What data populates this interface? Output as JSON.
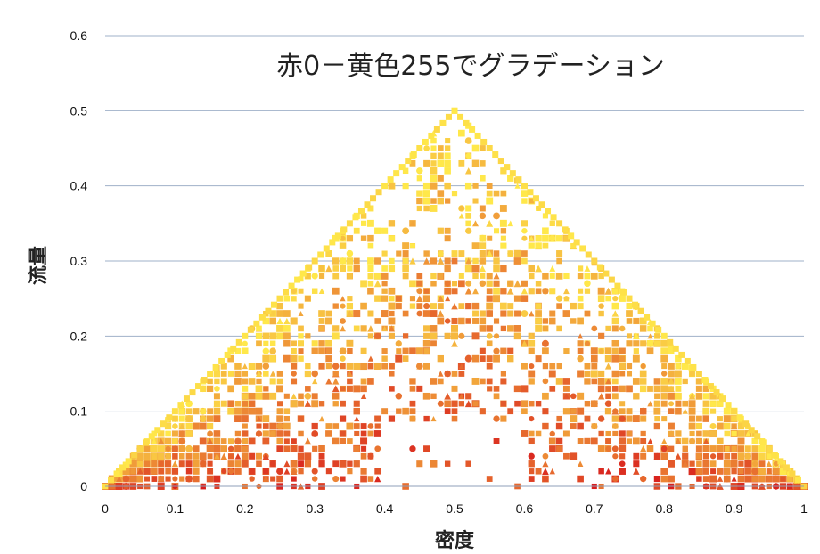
{
  "chart_data": {
    "type": "scatter",
    "title": "赤0－黄色255でグラデーション",
    "xlabel": "密度",
    "ylabel": "流量",
    "xlim": [
      0,
      1
    ],
    "ylim": [
      0,
      0.6
    ],
    "x_ticks": [
      "0",
      "0.1",
      "0.2",
      "0.3",
      "0.4",
      "0.5",
      "0.6",
      "0.7",
      "0.8",
      "0.9",
      "1"
    ],
    "y_ticks": [
      "0",
      "0.1",
      "0.2",
      "0.3",
      "0.4",
      "0.5",
      "0.6"
    ],
    "grid": "horizontal",
    "color_scale": {
      "from": "#d7191c",
      "to": "#ffe84a",
      "min": 0,
      "max": 255
    },
    "envelope": [
      {
        "x": 0,
        "y": 0
      },
      {
        "x": 0.5,
        "y": 0.5
      },
      {
        "x": 1,
        "y": 0
      }
    ],
    "dense_regions": [
      {
        "x": [
          0.38,
          0.62
        ],
        "y": [
          0.18,
          0.32
        ]
      },
      {
        "x": [
          0.45,
          0.55
        ],
        "y": [
          0.38,
          0.48
        ]
      }
    ],
    "sparse_regions": [
      {
        "x": [
          0.4,
          0.6
        ],
        "y": [
          0.0,
          0.08
        ]
      },
      {
        "x": [
          0.3,
          0.42
        ],
        "y": [
          0.36,
          0.48
        ]
      },
      {
        "x": [
          0.58,
          0.7
        ],
        "y": [
          0.36,
          0.48
        ]
      }
    ],
    "point_count_estimate": 2200
  }
}
